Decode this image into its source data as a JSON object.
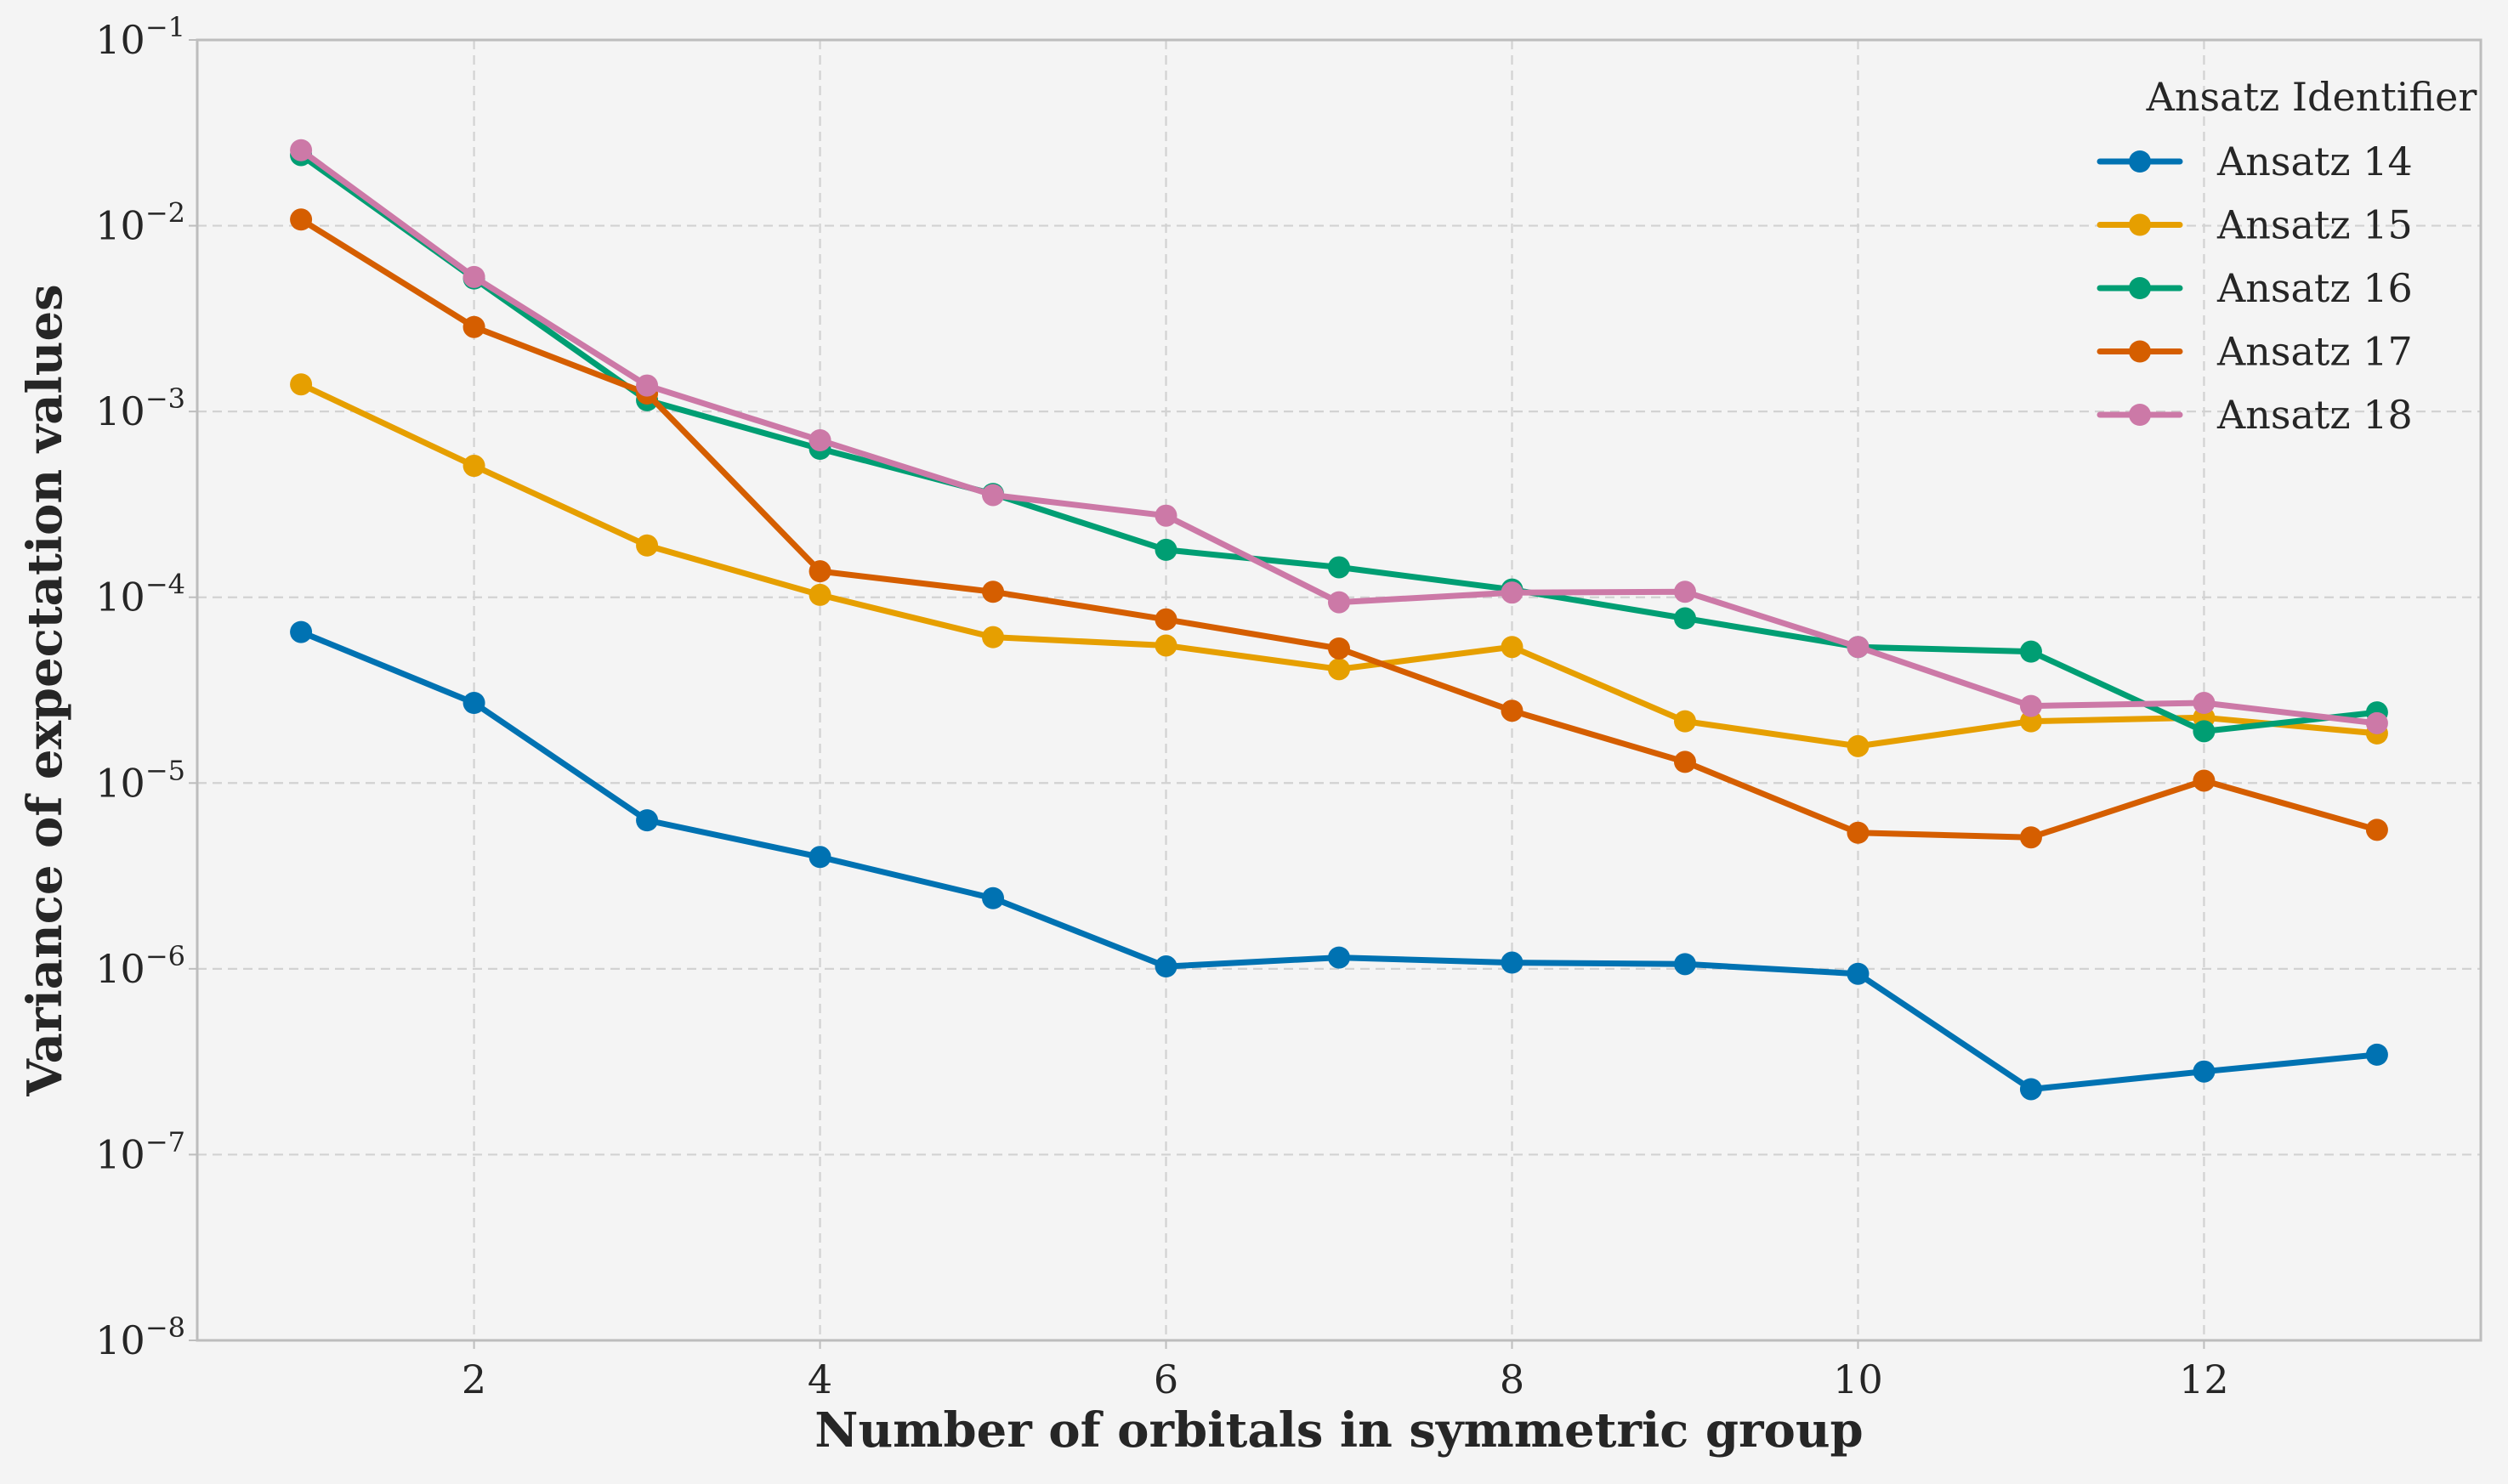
{
  "chart_data": {
    "type": "line",
    "title": "",
    "xlabel": "Number of orbitals in symmetric group",
    "ylabel": "Variance of expectation values",
    "yscale": "log",
    "xlim": [
      0.4,
      13.6
    ],
    "ylim": [
      1e-08,
      0.1
    ],
    "xticks": [
      2,
      4,
      6,
      8,
      10,
      12
    ],
    "xtick_labels": [
      "2",
      "4",
      "6",
      "8",
      "10",
      "12"
    ],
    "ytick_labels": [
      {
        "base": "10",
        "exp": "−8",
        "value": 1e-08
      },
      {
        "base": "10",
        "exp": "−7",
        "value": 1e-07
      },
      {
        "base": "10",
        "exp": "−6",
        "value": 1e-06
      },
      {
        "base": "10",
        "exp": "−5",
        "value": 1e-05
      },
      {
        "base": "10",
        "exp": "−4",
        "value": 0.0001
      },
      {
        "base": "10",
        "exp": "−3",
        "value": 0.001
      },
      {
        "base": "10",
        "exp": "−2",
        "value": 0.01
      },
      {
        "base": "10",
        "exp": "−1",
        "value": 0.1
      }
    ],
    "grid": true,
    "legend": {
      "title": "Ansatz Identifier",
      "placement": "top-right"
    },
    "x": [
      1,
      2,
      3,
      4,
      5,
      6,
      7,
      8,
      9,
      10,
      11,
      12,
      13
    ],
    "series": [
      {
        "name": "Ansatz 14",
        "color": "#0072b2",
        "values": [
          6.5e-05,
          2.7e-05,
          6.3e-06,
          4e-06,
          2.4e-06,
          1.03e-06,
          1.15e-06,
          1.08e-06,
          1.06e-06,
          9.4e-07,
          2.25e-07,
          2.8e-07,
          3.45e-07
        ]
      },
      {
        "name": "Ansatz 15",
        "color": "#e69f00",
        "values": [
          0.0014,
          0.00051,
          0.00019,
          0.000103,
          6.1e-05,
          5.5e-05,
          4.1e-05,
          5.4e-05,
          2.15e-05,
          1.58e-05,
          2.15e-05,
          2.25e-05,
          1.85e-05
        ]
      },
      {
        "name": "Ansatz 16",
        "color": "#009e73",
        "values": [
          0.024,
          0.0052,
          0.00115,
          0.00063,
          0.00036,
          0.00018,
          0.000145,
          0.00011,
          7.7e-05,
          5.4e-05,
          5.1e-05,
          1.9e-05,
          2.4e-05
        ]
      },
      {
        "name": "Ansatz 17",
        "color": "#d55e00",
        "values": [
          0.0108,
          0.00285,
          0.00125,
          0.000138,
          0.000107,
          7.6e-05,
          5.3e-05,
          2.45e-05,
          1.3e-05,
          5.4e-06,
          5.1e-06,
          1.03e-05,
          5.6e-06
        ]
      },
      {
        "name": "Ansatz 18",
        "color": "#cc79a7",
        "values": [
          0.0255,
          0.0053,
          0.00138,
          0.0007,
          0.000355,
          0.000275,
          9.4e-05,
          0.000106,
          0.000107,
          5.4e-05,
          2.6e-05,
          2.7e-05,
          2.1e-05
        ]
      }
    ]
  }
}
